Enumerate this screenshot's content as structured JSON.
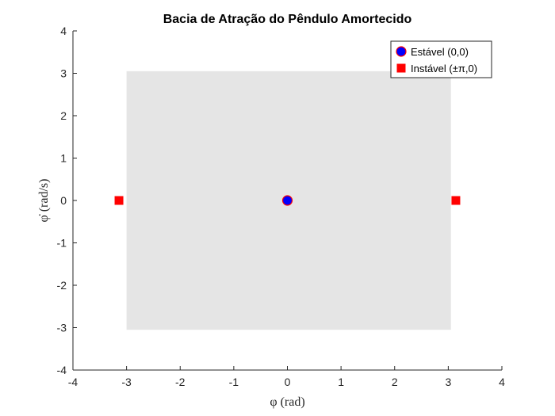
{
  "chart_data": {
    "type": "scatter",
    "title": "Bacia de Atração do Pêndulo Amortecido",
    "xlabel": "φ (rad)",
    "ylabel": "φ̇ (rad/s)",
    "xlim": [
      -4,
      4
    ],
    "ylim": [
      -4,
      4
    ],
    "xticks": [
      -4,
      -3,
      -2,
      -1,
      0,
      1,
      2,
      3,
      4
    ],
    "yticks": [
      -4,
      -3,
      -2,
      -1,
      0,
      1,
      2,
      3,
      4
    ],
    "basin_region": {
      "x": [
        -3.0,
        3.05
      ],
      "y": [
        -3.05,
        3.05
      ],
      "color": "#e5e5e5"
    },
    "series": [
      {
        "name": "Estável (0,0)",
        "marker": "circle",
        "color": "#0000ff",
        "edge_color": "#ff0000",
        "points": [
          [
            0,
            0
          ]
        ]
      },
      {
        "name": "Instável (±π,0)",
        "marker": "square",
        "color": "#ff0000",
        "points": [
          [
            -3.1416,
            0
          ],
          [
            3.1416,
            0
          ]
        ]
      }
    ],
    "legend_position": "top-right",
    "grid": false
  }
}
